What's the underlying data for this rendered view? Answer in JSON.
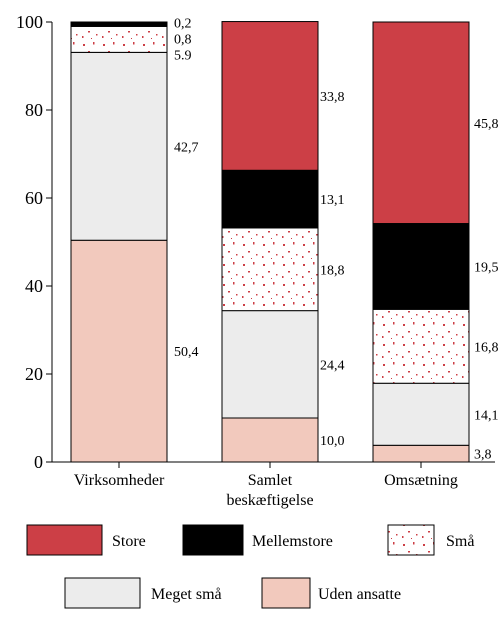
{
  "colors": {
    "Store": "#cc3f46",
    "Mellemstore": "#000000",
    "Små": "#ffffff",
    "Små_dots": "#cc3f46",
    "Meget små": "#ececec",
    "Uden ansatte": "#f2c9bd"
  },
  "chart_data": {
    "type": "bar",
    "stacked": true,
    "categories": [
      [
        "Virksomheder"
      ],
      [
        "Samlet",
        "beskæftigelse"
      ],
      [
        "Omsætning"
      ]
    ],
    "ylim": [
      0,
      100
    ],
    "yticks": [
      "0",
      "20",
      "40",
      "60",
      "80",
      "100"
    ],
    "grid": false,
    "legend_position": "bottom",
    "series": [
      {
        "name": "Uden ansatte",
        "values": [
          50.4,
          10.0,
          3.8
        ],
        "labels": [
          "50,4",
          "10,0",
          "3,8"
        ]
      },
      {
        "name": "Meget små",
        "values": [
          42.7,
          24.4,
          14.1
        ],
        "labels": [
          "42,7",
          "24,4",
          "14,1"
        ]
      },
      {
        "name": "Små",
        "values": [
          5.9,
          18.8,
          16.8
        ],
        "labels": [
          "5.9",
          "18,8",
          "16,8"
        ]
      },
      {
        "name": "Mellemstore",
        "values": [
          0.8,
          13.1,
          19.5
        ],
        "labels": [
          "0,8",
          "13,1",
          "19,5"
        ]
      },
      {
        "name": "Store",
        "values": [
          0.2,
          33.8,
          45.8
        ],
        "labels": [
          "0,2",
          "33,8",
          "45,8"
        ]
      }
    ],
    "legend": [
      {
        "name": "Store"
      },
      {
        "name": "Mellemstore"
      },
      {
        "name": "Små"
      },
      {
        "name": "Meget små"
      },
      {
        "name": "Uden ansatte"
      }
    ]
  }
}
